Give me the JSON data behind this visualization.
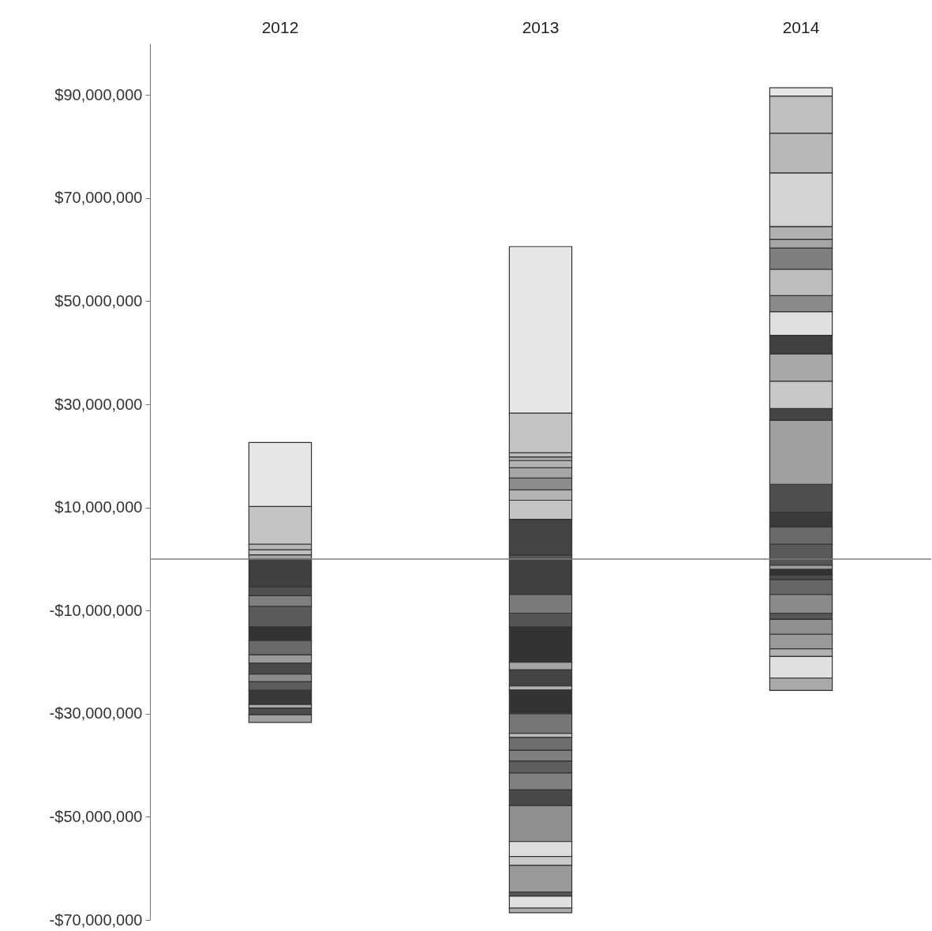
{
  "chart_data": {
    "type": "bar",
    "stacked": true,
    "grid": false,
    "categories": [
      "2012",
      "2013",
      "2014"
    ],
    "ylim": [
      -70000000,
      100000000
    ],
    "yticks": [
      {
        "value": -70000000,
        "label": "-$70,000,000"
      },
      {
        "value": -50000000,
        "label": "-$50,000,000"
      },
      {
        "value": -30000000,
        "label": "-$30,000,000"
      },
      {
        "value": -10000000,
        "label": "-$10,000,000"
      },
      {
        "value": 10000000,
        "label": "$10,000,000"
      },
      {
        "value": 30000000,
        "label": "$30,000,000"
      },
      {
        "value": 50000000,
        "label": "$50,000,000"
      },
      {
        "value": 70000000,
        "label": "$70,000,000"
      },
      {
        "value": 90000000,
        "label": "$90,000,000"
      }
    ],
    "ref_lines": [
      {
        "axis": "y",
        "value": 0,
        "color": "#808080"
      }
    ],
    "series": [
      {
        "values": [
          800000,
          800000,
          2900000
        ],
        "colors": [
          "#a8a8a8",
          "#555555",
          "#5a5a5a"
        ]
      },
      {
        "values": [
          1000000,
          6900000,
          3300000
        ],
        "colors": [
          "#bdbdbd",
          "#444444",
          "#6a6a6a"
        ]
      },
      {
        "values": [
          1100000,
          3700000,
          2900000
        ],
        "colors": [
          "#b5b5b5",
          "#c4c4c4",
          "#3a3a3a"
        ]
      },
      {
        "values": [
          7300000,
          2000000,
          5400000
        ],
        "colors": [
          "#c4c4c4",
          "#b3b3b3",
          "#4e4e4e"
        ]
      },
      {
        "values": [
          12400000,
          2300000,
          12400000
        ],
        "colors": [
          "#e6e6e6",
          "#8c8c8c",
          "#a0a0a0"
        ]
      },
      {
        "values": [
          -5400000,
          2000000,
          2300000
        ],
        "colors": [
          "#404040",
          "#a6a6a6",
          "#444444"
        ]
      },
      {
        "values": [
          -1700000,
          1400000,
          5300000
        ],
        "colors": [
          "#505050",
          "#b3b3b3",
          "#c8c8c8"
        ]
      },
      {
        "values": [
          -2100000,
          700000,
          5300000
        ],
        "colors": [
          "#7f7f7f",
          "#aaaaaa",
          "#a8a8a8"
        ]
      },
      {
        "values": [
          -3900000,
          800000,
          3600000
        ],
        "colors": [
          "#5a5a5a",
          "#bbbbbb",
          "#404040"
        ]
      },
      {
        "values": [
          -2700000,
          7700000,
          4600000
        ],
        "colors": [
          "#333333",
          "#c3c3c3",
          "#e0e0e0"
        ]
      },
      {
        "values": [
          -2800000,
          32300000,
          3100000
        ],
        "colors": [
          "#6a6a6a",
          "#e6e6e6",
          "#8a8a8a"
        ]
      },
      {
        "values": [
          -1600000,
          -6900000,
          5100000
        ],
        "colors": [
          "#999999",
          "#404040",
          "#bdbdbd"
        ]
      },
      {
        "values": [
          -2100000,
          -3600000,
          4100000
        ],
        "colors": [
          "#4a4a4a",
          "#7a7a7a",
          "#7f7f7f"
        ]
      },
      {
        "values": [
          -1500000,
          -2700000,
          1700000
        ],
        "colors": [
          "#8c8c8c",
          "#555555",
          "#a5a5a5"
        ]
      },
      {
        "values": [
          -1700000,
          -6800000,
          2500000
        ],
        "colors": [
          "#5c5c5c",
          "#333333",
          "#b0b0b0"
        ]
      },
      {
        "values": [
          -2700000,
          -1500000,
          10400000
        ],
        "colors": [
          "#383838",
          "#a5a5a5",
          "#d3d3d3"
        ]
      },
      {
        "values": [
          -700000,
          -3100000,
          7700000
        ],
        "colors": [
          "#aaaaaa",
          "#444444",
          "#b8b8b8"
        ]
      },
      {
        "values": [
          -1300000,
          -800000,
          7200000
        ],
        "colors": [
          "#4d4d4d",
          "#b0b0b0",
          "#bfbfbf"
        ]
      },
      {
        "values": [
          -1500000,
          -4600000,
          1600000
        ],
        "colors": [
          "#a0a0a0",
          "#333333",
          "#e6e6e6"
        ]
      },
      {
        "values": [
          null,
          -3800000,
          -1200000
        ],
        "colors": [
          null,
          "#777777",
          "#555555"
        ]
      },
      {
        "values": [
          null,
          -800000,
          -800000
        ],
        "colors": [
          null,
          "#bbbbbb",
          "#a0a0a0"
        ]
      },
      {
        "values": [
          null,
          -2500000,
          -1100000
        ],
        "colors": [
          null,
          "#6e6e6e",
          "#333333"
        ]
      },
      {
        "values": [
          null,
          -2100000,
          -900000
        ],
        "colors": [
          null,
          "#7f7f7f",
          "#4a4a4a"
        ]
      },
      {
        "values": [
          null,
          -2300000,
          -2900000
        ],
        "colors": [
          null,
          "#5e5e5e",
          "#666666"
        ]
      },
      {
        "values": [
          null,
          -3300000,
          -3600000
        ],
        "colors": [
          null,
          "#808080",
          "#8a8a8a"
        ]
      },
      {
        "values": [
          null,
          -3000000,
          -1200000
        ],
        "colors": [
          null,
          "#484848",
          "#555555"
        ]
      },
      {
        "values": [
          null,
          -7000000,
          -2900000
        ],
        "colors": [
          null,
          "#8f8f8f",
          "#8f8f8f"
        ]
      },
      {
        "values": [
          null,
          -2900000,
          -2800000
        ],
        "colors": [
          null,
          "#dddddd",
          "#9a9a9a"
        ]
      },
      {
        "values": [
          null,
          -1700000,
          -1500000
        ],
        "colors": [
          null,
          "#c8c8c8",
          "#b0b0b0"
        ]
      },
      {
        "values": [
          null,
          -5200000,
          -4200000
        ],
        "colors": [
          null,
          "#999999",
          "#e0e0e0"
        ]
      },
      {
        "values": [
          null,
          -800000,
          -2400000
        ],
        "colors": [
          null,
          "#555555",
          "#aaaaaa"
        ]
      },
      {
        "values": [
          null,
          -2300000,
          null
        ],
        "colors": [
          null,
          "#e0e0e0",
          null
        ]
      },
      {
        "values": [
          null,
          -900000,
          null
        ],
        "colors": [
          null,
          "#aaaaaa",
          null
        ]
      }
    ]
  }
}
